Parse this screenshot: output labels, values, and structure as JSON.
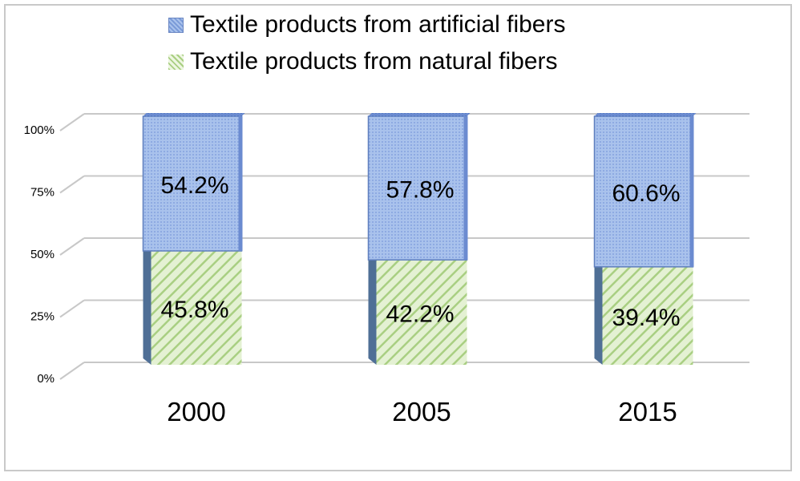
{
  "chart_data": {
    "type": "bar",
    "stacked": true,
    "percent_stacked": true,
    "three_d": true,
    "categories": [
      "2000",
      "2005",
      "2015"
    ],
    "series": [
      {
        "name": "Textile products from natural fibers",
        "values": [
          45.8,
          42.2,
          39.4
        ],
        "labels": [
          "45.8%",
          "42.2%",
          "39.4%"
        ],
        "color": "#d5e8b9",
        "hatch_color": "#a9cf82"
      },
      {
        "name": "Textile products from artificial fibers",
        "values": [
          54.2,
          57.8,
          60.6
        ],
        "labels": [
          "54.2%",
          "57.8%",
          "60.6%"
        ],
        "color": "#a9c2ec",
        "hatch_color": "#7b9bd8"
      }
    ],
    "yticks": [
      "0%",
      "25%",
      "50%",
      "75%",
      "100%"
    ],
    "ylim": [
      0,
      100
    ],
    "grid": true,
    "legend_position": "top",
    "title": "",
    "xlabel": "",
    "ylabel": ""
  }
}
